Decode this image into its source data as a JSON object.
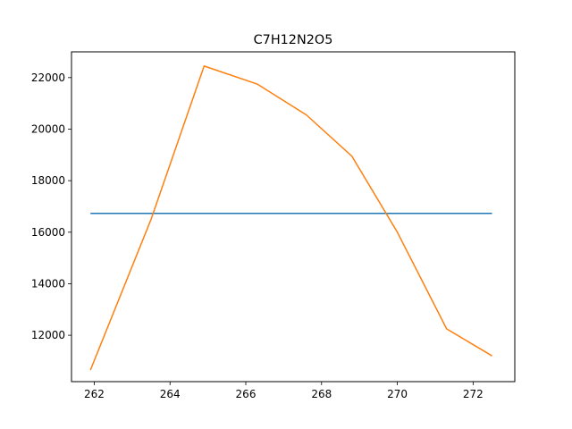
{
  "chart_data": {
    "type": "line",
    "title": "C7H12N2O5",
    "xlabel": "",
    "ylabel": "",
    "xlim": [
      261.4,
      273.1
    ],
    "ylim": [
      10200,
      23000
    ],
    "grid": false,
    "legend": "none",
    "x_ticks": [
      262,
      264,
      266,
      268,
      270,
      272
    ],
    "y_ticks": [
      12000,
      14000,
      16000,
      18000,
      20000,
      22000
    ],
    "series": [
      {
        "color": "#1f77b4",
        "x": [
          261.9,
          272.5
        ],
        "y": [
          16730,
          16730
        ]
      },
      {
        "color": "#ff7f0e",
        "x": [
          261.9,
          263.5,
          264.9,
          266.3,
          267.6,
          268.8,
          270.0,
          271.3,
          272.5
        ],
        "y": [
          10650,
          16500,
          22450,
          21750,
          20550,
          18950,
          16000,
          12250,
          11200
        ]
      }
    ]
  }
}
